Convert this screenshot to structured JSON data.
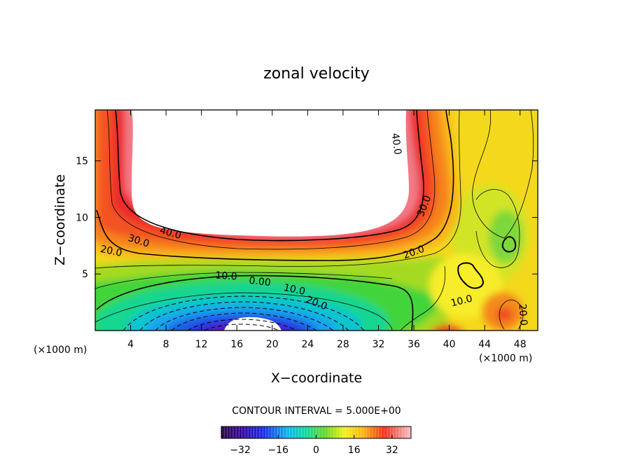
{
  "chart_data": {
    "type": "heatmap",
    "title": "zonal velocity",
    "xlabel": "X−coordinate",
    "ylabel": "Z−coordinate",
    "x_unit": "(×1000 m)",
    "z_unit": "(×1000 m)",
    "xlim": [
      0,
      50
    ],
    "ylim": [
      0,
      19.5
    ],
    "x_ticks": [
      4,
      8,
      12,
      16,
      20,
      24,
      28,
      32,
      36,
      40,
      44,
      48
    ],
    "y_ticks": [
      5,
      10,
      15
    ],
    "contour_interval_text": "CONTOUR INTERVAL = 5.000E+00",
    "colorbar": {
      "range": [
        -40,
        40
      ],
      "ticks": [
        -32,
        -16,
        0,
        16,
        32
      ]
    },
    "contour_labels": [
      {
        "text": "40.0",
        "x": 34.0,
        "z": 16.5,
        "angle": 82
      },
      {
        "text": "30.0",
        "x": 37.2,
        "z": 11.0,
        "angle": -68
      },
      {
        "text": "40.0",
        "x": 8.5,
        "z": 8.6,
        "angle": 16
      },
      {
        "text": "30.0",
        "x": 4.9,
        "z": 7.9,
        "angle": 18
      },
      {
        "text": "20.0",
        "x": 1.8,
        "z": 7.0,
        "angle": 12
      },
      {
        "text": "20.0",
        "x": 36.0,
        "z": 6.9,
        "angle": -20
      },
      {
        "text": "10.0",
        "x": 14.8,
        "z": 4.8,
        "angle": 4
      },
      {
        "text": "0.00",
        "x": 18.6,
        "z": 4.3,
        "angle": 6
      },
      {
        "text": "10.0",
        "x": 22.5,
        "z": 3.6,
        "angle": 12
      },
      {
        "text": "20.0",
        "x": 25.0,
        "z": 2.4,
        "angle": 22
      },
      {
        "text": "10.0",
        "x": 41.4,
        "z": 2.6,
        "angle": -14
      },
      {
        "text": "20.0",
        "x": 48.3,
        "z": 1.4,
        "angle": 86
      }
    ]
  }
}
